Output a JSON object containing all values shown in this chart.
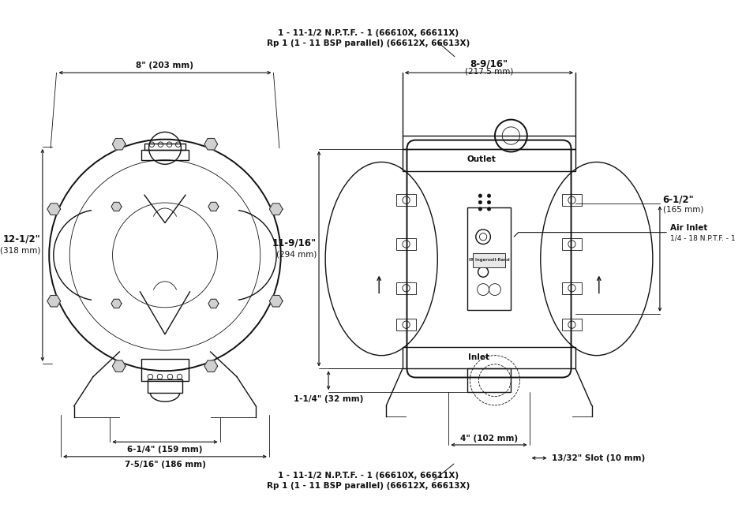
{
  "bg_color": "#ffffff",
  "fig_width": 9.4,
  "fig_height": 6.58,
  "dpi": 100,
  "ann": {
    "top1": "1 - 11-1/2 N.P.T.F. - 1 (66610X, 66611X)",
    "top2": "Rp 1 (1 - 11 BSP parallel) (66612X, 66613X)",
    "bot1": "1 - 11-1/2 N.P.T.F. - 1 (66610X, 66611X)",
    "bot2": "Rp 1 (1 - 11 BSP parallel) (66612X, 66613X)",
    "d8": "8\" (203 mm)",
    "d8_9_16a": "8-9/16\"",
    "d8_9_16b": "(217.5 mm)",
    "d12_12a": "12-1/2\"",
    "d12_12b": "(318 mm)",
    "d11_9_16a": "11-9/16\"",
    "d11_9_16b": "(294 mm)",
    "d6_14": "6-1/4\" (159 mm)",
    "d7_516": "7-5/16\" (186 mm)",
    "d1_14": "1-1/4\" (32 mm)",
    "d4": "4\" (102 mm)",
    "d13_32": "13/32\" Slot (10 mm)",
    "d6_12a": "6-1/2\"",
    "d6_12b": "(165 mm)",
    "air_inlet1": "Air Inlet",
    "air_inlet2": "1/4 - 18 N.P.T.F. - 1",
    "outlet": "Outlet",
    "inlet": "Inlet",
    "ir_logo": "IR Ingersoll-Rand"
  },
  "lc": "#111111",
  "lw": 1.0,
  "lw_thin": 0.6,
  "lw_thick": 1.4,
  "fs": 7.5,
  "fs_sm": 6.5,
  "fs_bold": 8.5
}
